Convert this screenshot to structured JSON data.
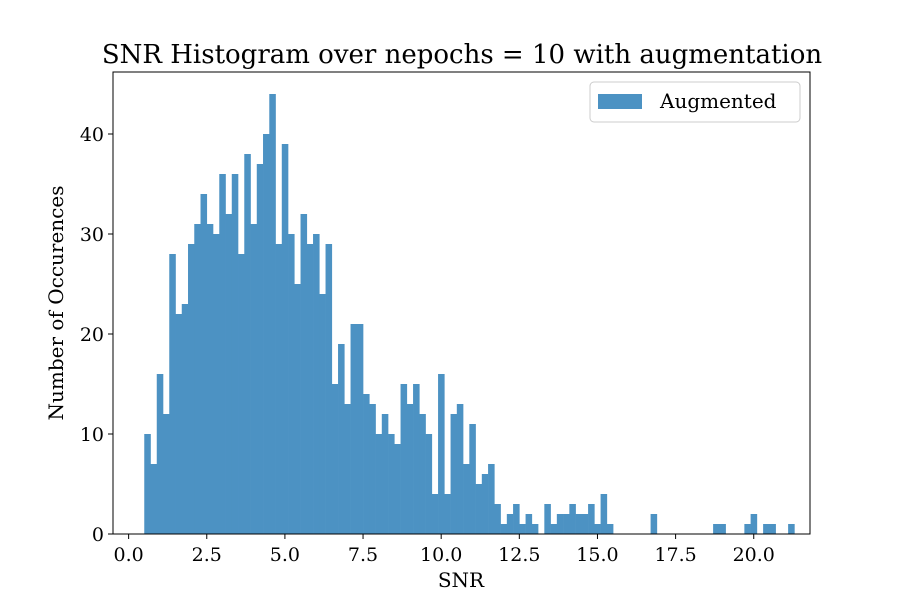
{
  "chart_data": {
    "type": "bar",
    "title": "SNR Histogram over nepochs = 10 with augmentation",
    "xlabel": "SNR",
    "ylabel": "Number of Occurences",
    "xlim": [
      -0.5,
      21.8
    ],
    "ylim": [
      0,
      46.2
    ],
    "xticks": [
      0.0,
      2.5,
      5.0,
      7.5,
      10.0,
      12.5,
      15.0,
      17.5,
      20.0
    ],
    "xtick_labels": [
      "0.0",
      "2.5",
      "5.0",
      "7.5",
      "10.0",
      "12.5",
      "15.0",
      "17.5",
      "20.0"
    ],
    "yticks": [
      0,
      10,
      20,
      30,
      40
    ],
    "ytick_labels": [
      "0",
      "10",
      "20",
      "30",
      "40"
    ],
    "bin_start": 0.5,
    "bin_width": 0.2,
    "grid": false,
    "legend_position": "top-right",
    "series": [
      {
        "name": "Augmented",
        "color": "#4c92c3",
        "values": [
          10,
          7,
          16,
          12,
          28,
          22,
          23,
          29,
          31,
          34,
          31,
          30,
          36,
          32,
          36,
          28,
          38,
          31,
          37,
          40,
          44,
          29,
          39,
          30,
          25,
          32,
          29,
          30,
          24,
          29,
          15,
          19,
          13,
          21,
          21,
          14,
          13,
          10,
          12,
          10,
          9,
          15,
          13,
          15,
          12,
          10,
          4,
          16,
          4,
          12,
          13,
          7,
          11,
          5,
          6,
          7,
          3,
          1,
          2,
          3,
          1,
          2,
          1,
          0,
          3,
          1,
          2,
          2,
          3,
          2,
          2,
          3,
          1,
          4,
          1,
          0,
          0,
          0,
          0,
          0,
          0,
          2,
          0,
          0,
          0,
          0,
          0,
          0,
          0,
          0,
          0,
          1,
          1,
          0,
          0,
          0,
          1,
          2,
          0,
          1,
          1,
          0,
          0,
          1
        ]
      }
    ]
  }
}
